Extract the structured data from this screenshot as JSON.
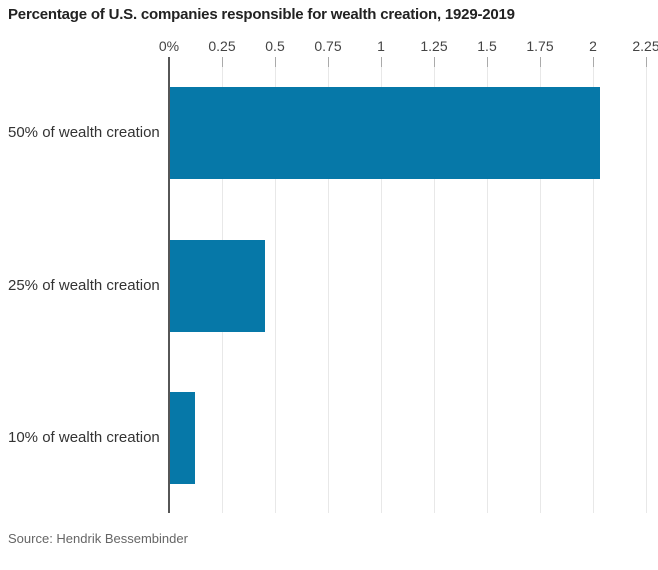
{
  "chart_data": {
    "type": "bar",
    "orientation": "horizontal",
    "title": "Percentage of U.S. companies responsible for wealth creation, 1929-2019",
    "source": "Source: Hendrik Bessembinder",
    "categories": [
      "50% of wealth creation",
      "25% of wealth creation",
      "10% of wealth creation"
    ],
    "values": [
      2.03,
      0.45,
      0.12
    ],
    "x_ticks": [
      {
        "label": "0%",
        "value": 0
      },
      {
        "label": "0.25",
        "value": 0.25
      },
      {
        "label": "0.5",
        "value": 0.5
      },
      {
        "label": "0.75",
        "value": 0.75
      },
      {
        "label": "1",
        "value": 1
      },
      {
        "label": "1.25",
        "value": 1.25
      },
      {
        "label": "1.5",
        "value": 1.5
      },
      {
        "label": "1.75",
        "value": 1.75
      },
      {
        "label": "2",
        "value": 2
      },
      {
        "label": "2.25",
        "value": 2.25
      }
    ],
    "xlim": [
      0,
      2.25
    ],
    "xlabel": "",
    "ylabel": "",
    "grid": true,
    "legend": false,
    "colors": {
      "bar": "#0678a8",
      "axis": "#565656",
      "gridline": "#e8e8e8",
      "tick": "#aaaaaa",
      "zero_tick": "#222222"
    }
  }
}
